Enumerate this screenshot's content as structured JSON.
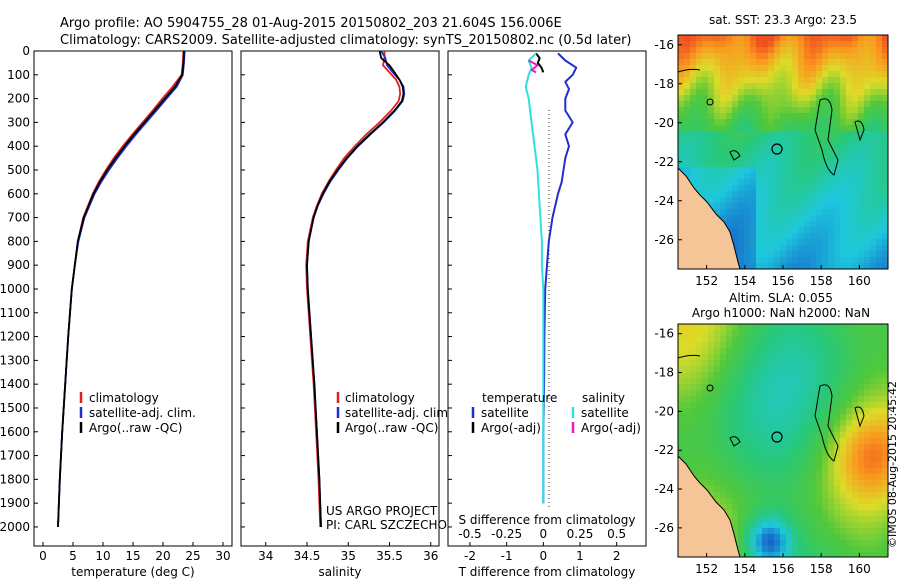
{
  "header": {
    "title_line1": "Argo profile: AO 5904755_28 01-Aug-2015 20150802_203 21.604S 156.006E",
    "title_line2": "Climatology: CARS2009. Satellite-adjusted climatology: synTS_20150802.nc (0.5d later)"
  },
  "credits": {
    "project": "US ARGO PROJECT",
    "pi": "PI: CARL SZCZECHOWSKI",
    "watermark": "©IMOS 08-Aug-2015 20:45:42"
  },
  "colors": {
    "climatology": "#e02020",
    "satellite": "#1f2fd0",
    "argo": "#000000",
    "sat_salinity": "#30e0e0",
    "argo_salinity": "#e020c0",
    "land": "#f5c497"
  },
  "chart_data": [
    {
      "type": "line",
      "name": "temperature-profile",
      "xlabel": "temperature (deg C)",
      "ylabel": "",
      "xlim": [
        -1.5,
        31.5
      ],
      "ylim": [
        2080,
        0
      ],
      "xticks": [
        "0",
        "5",
        "10",
        "15",
        "20",
        "25",
        "30"
      ],
      "yticks": [
        "0",
        "100",
        "200",
        "300",
        "400",
        "500",
        "600",
        "700",
        "800",
        "900",
        "1000",
        "1100",
        "1200",
        "1300",
        "1400",
        "1500",
        "1600",
        "1700",
        "1800",
        "1900",
        "2000"
      ],
      "legend": [
        "climatology",
        "satellite-adj. clim.",
        "Argo(..raw -QC)"
      ],
      "depth": [
        0,
        50,
        100,
        150,
        200,
        250,
        300,
        350,
        400,
        450,
        500,
        550,
        600,
        700,
        800,
        900,
        1000,
        1200,
        1400,
        1600,
        1800,
        2000
      ],
      "series": [
        {
          "name": "climatology",
          "color_key": "climatology",
          "values": [
            23.4,
            23.3,
            23.1,
            21.6,
            19.9,
            18.3,
            16.6,
            14.9,
            13.3,
            11.8,
            10.5,
            9.3,
            8.3,
            6.7,
            5.8,
            5.3,
            4.8,
            4.2,
            3.7,
            3.2,
            2.8,
            2.5
          ]
        },
        {
          "name": "satellite-adj. clim.",
          "color_key": "satellite",
          "values": [
            23.6,
            23.5,
            23.3,
            22.3,
            20.6,
            18.9,
            17.2,
            15.5,
            13.9,
            12.4,
            11.0,
            9.7,
            8.6,
            6.9,
            5.9,
            5.3,
            4.8,
            4.2,
            3.7,
            3.2,
            2.8,
            2.5
          ]
        },
        {
          "name": "Argo(..raw -QC)",
          "color_key": "argo",
          "values": [
            23.5,
            23.4,
            23.2,
            22.0,
            20.3,
            18.6,
            16.9,
            15.2,
            13.6,
            12.1,
            10.7,
            9.5,
            8.4,
            6.8,
            5.8,
            5.3,
            4.8,
            4.2,
            3.7,
            3.2,
            2.8,
            2.5
          ]
        }
      ]
    },
    {
      "type": "line",
      "name": "salinity-profile",
      "xlabel": "salinity",
      "ylabel": "",
      "xlim": [
        33.7,
        36.1
      ],
      "ylim": [
        2080,
        0
      ],
      "xticks": [
        "34",
        "34.5",
        "35",
        "35.5",
        "36"
      ],
      "legend": [
        "climatology",
        "satellite-adj. clim.",
        "Argo(..raw -QC)"
      ],
      "depth": [
        0,
        30,
        60,
        90,
        120,
        150,
        180,
        210,
        250,
        300,
        350,
        400,
        450,
        500,
        550,
        600,
        650,
        700,
        800,
        900,
        1000,
        1200,
        1400,
        1600,
        1800,
        2000
      ],
      "series": [
        {
          "name": "climatology",
          "color_key": "climatology",
          "values": [
            35.44,
            35.44,
            35.42,
            35.5,
            35.58,
            35.62,
            35.63,
            35.61,
            35.52,
            35.38,
            35.22,
            35.08,
            34.95,
            34.85,
            34.76,
            34.68,
            34.62,
            34.57,
            34.51,
            34.49,
            34.5,
            34.54,
            34.58,
            34.61,
            34.64,
            34.66
          ]
        },
        {
          "name": "satellite-adj. clim.",
          "color_key": "satellite",
          "values": [
            35.4,
            35.45,
            35.47,
            35.54,
            35.62,
            35.67,
            35.68,
            35.66,
            35.57,
            35.43,
            35.27,
            35.12,
            34.99,
            34.88,
            34.78,
            34.7,
            34.63,
            34.58,
            34.52,
            34.5,
            34.51,
            34.55,
            34.59,
            34.62,
            34.65,
            34.67
          ]
        },
        {
          "name": "Argo(..raw -QC)",
          "color_key": "argo",
          "values": [
            35.38,
            35.4,
            35.5,
            35.56,
            35.62,
            35.66,
            35.67,
            35.65,
            35.56,
            35.42,
            35.26,
            35.11,
            34.98,
            34.87,
            34.77,
            34.69,
            34.63,
            34.58,
            34.52,
            34.5,
            34.51,
            34.55,
            34.59,
            34.62,
            34.65,
            34.67
          ]
        }
      ]
    },
    {
      "type": "line",
      "name": "difference-profile",
      "xlabel": "T difference from climatology",
      "xlabel_top": "S difference from climatology",
      "xlim": [
        -2.6,
        2.8
      ],
      "ylim": [
        2080,
        0
      ],
      "xticks": [
        "-2",
        "-1",
        "0",
        "1",
        "2"
      ],
      "xticks_top": [
        "-0.5",
        "-0.25",
        "0",
        "0.25",
        "0.5"
      ],
      "legend_left_title": "temperature",
      "legend_left": [
        "satellite",
        "Argo(-adj)"
      ],
      "legend_right_title": "salinity",
      "legend_right": [
        "satellite",
        "Argo(-adj)"
      ],
      "series": [
        {
          "name": "T satellite",
          "color_key": "satellite",
          "depth": [
            10,
            40,
            70,
            100,
            130,
            160,
            200,
            250,
            300,
            350,
            400,
            450,
            500,
            550,
            600,
            700,
            800,
            900,
            1000,
            1200,
            1400,
            1600,
            1800,
            1900
          ],
          "values": [
            0.4,
            0.6,
            0.9,
            0.8,
            0.6,
            0.7,
            0.6,
            0.6,
            0.8,
            0.6,
            0.7,
            0.6,
            0.55,
            0.5,
            0.4,
            0.25,
            0.15,
            0.1,
            0.05,
            0.03,
            0.02,
            0.0,
            0.0,
            0.0
          ]
        },
        {
          "name": "T Argo(-adj)",
          "color_key": "argo",
          "depth": [
            10,
            30,
            50,
            70,
            90
          ],
          "values": [
            -0.2,
            -0.1,
            -0.15,
            -0.05,
            0.0
          ]
        },
        {
          "name": "S satellite",
          "color_key": "sat_salinity",
          "depth": [
            10,
            40,
            70,
            100,
            150,
            200,
            250,
            300,
            400,
            500,
            600,
            700,
            800,
            900,
            1000,
            1200,
            1400,
            1600,
            1800,
            1900
          ],
          "values": [
            -0.05,
            -0.1,
            -0.08,
            -0.1,
            -0.12,
            -0.1,
            -0.09,
            -0.08,
            -0.06,
            -0.04,
            -0.03,
            -0.02,
            -0.01,
            -0.01,
            0.0,
            0.0,
            0.0,
            0.0,
            0.0,
            0.0
          ]
        },
        {
          "name": "S Argo(-adj)",
          "color_key": "argo_salinity",
          "depth": [
            40,
            60,
            80,
            90
          ],
          "values": [
            -0.1,
            -0.04,
            -0.08,
            -0.05
          ]
        }
      ]
    },
    {
      "type": "heatmap",
      "name": "sst-map",
      "title": "sat. SST: 23.3 Argo: 23.5",
      "xticks": [
        "152",
        "154",
        "156",
        "158",
        "160"
      ],
      "yticks": [
        "-16",
        "-18",
        "-20",
        "-22",
        "-24",
        "-26"
      ],
      "xlim": [
        150.5,
        161.5
      ],
      "ylim": [
        -27.5,
        -15.5
      ],
      "marker": [
        156.006,
        -21.604
      ]
    },
    {
      "type": "heatmap",
      "name": "sla-map",
      "title_line1": "Altim. SLA: 0.055",
      "title_line2": "Argo h1000: NaN h2000: NaN",
      "xticks": [
        "152",
        "154",
        "156",
        "158",
        "160"
      ],
      "yticks": [
        "-16",
        "-18",
        "-20",
        "-22",
        "-24",
        "-26"
      ],
      "xlim": [
        150.5,
        161.5
      ],
      "ylim": [
        -27.5,
        -15.5
      ],
      "marker": [
        156.006,
        -21.604
      ]
    }
  ]
}
